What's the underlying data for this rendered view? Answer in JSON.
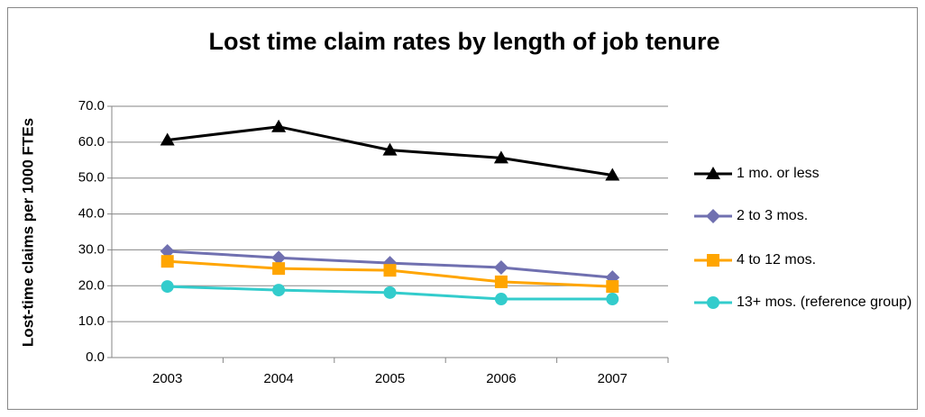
{
  "chart_data": {
    "type": "line",
    "title": "Lost time claim rates by length of job tenure",
    "y_label": "Lost-time claims per 1000 FTEs",
    "categories": [
      "2003",
      "2004",
      "2005",
      "2006",
      "2007"
    ],
    "series": [
      {
        "name": "1 mo. or less",
        "color": "#000000",
        "marker": "triangle",
        "values": [
          60.6,
          64.3,
          57.8,
          55.6,
          50.8
        ]
      },
      {
        "name": "2 to 3 mos.",
        "color": "#7070b0",
        "marker": "diamond",
        "values": [
          29.6,
          27.8,
          26.3,
          25.1,
          22.3
        ]
      },
      {
        "name": "4 to 12 mos.",
        "color": "#ffa500",
        "marker": "square",
        "values": [
          26.8,
          24.8,
          24.3,
          21.1,
          19.8
        ]
      },
      {
        "name": "13+ mos. (reference group)",
        "color": "#33cccc",
        "marker": "circle",
        "values": [
          19.8,
          18.8,
          18.1,
          16.3,
          16.3
        ]
      }
    ],
    "ylim": [
      0,
      70
    ],
    "yticks": [
      {
        "value": 0,
        "label": "0.0"
      },
      {
        "value": 10,
        "label": "10.0"
      },
      {
        "value": 20,
        "label": "20.0"
      },
      {
        "value": 30,
        "label": "30.0"
      },
      {
        "value": 40,
        "label": "40.0"
      },
      {
        "value": 50,
        "label": "50.0"
      },
      {
        "value": 60,
        "label": "60.0"
      },
      {
        "value": 70,
        "label": "70.0"
      }
    ],
    "grid": true,
    "legend": "right"
  }
}
